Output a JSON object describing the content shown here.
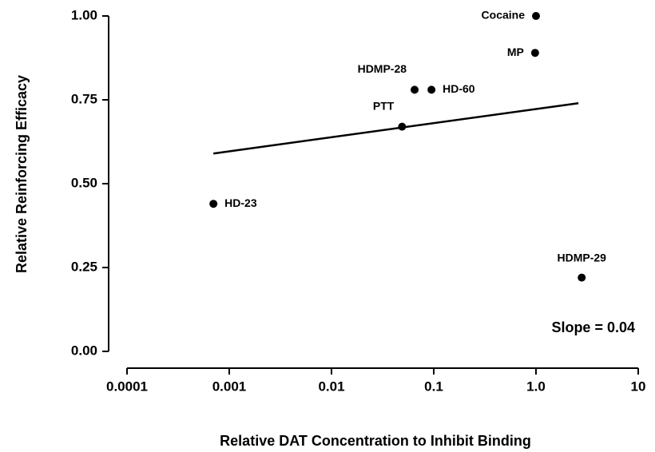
{
  "chart_data": {
    "type": "scatter",
    "xlabel": "Relative DAT Concentration to Inhibit Binding",
    "ylabel": "Relative Reinforcing Efficacy",
    "x_scale": "log",
    "labels": [
      "Cocaine",
      "MP",
      "HDMP-28",
      "HD-60",
      "PTT",
      "HD-23",
      "HDMP-29"
    ],
    "x": [
      1.0,
      0.98,
      0.065,
      0.095,
      0.049,
      0.0007,
      2.8
    ],
    "y": [
      1.0,
      0.89,
      0.78,
      0.78,
      0.67,
      0.44,
      0.22
    ],
    "color": "#000000",
    "fit": {
      "x": [
        0.0007,
        2.6
      ],
      "y": [
        0.59,
        0.74
      ]
    },
    "annotation": "Slope = 0.04",
    "xlim": [
      0.0001,
      10
    ],
    "xticks": [
      0.0001,
      0.001,
      0.01,
      0.1,
      {
        "value": 1,
        "label": "1.0"
      },
      10
    ],
    "ylim": [
      0,
      1
    ],
    "yticks": [
      {
        "value": 0,
        "label": "0.00"
      },
      {
        "value": 0.25,
        "label": "0.25"
      },
      {
        "value": 0.5,
        "label": "0.50"
      },
      {
        "value": 0.75,
        "label": "0.75"
      },
      {
        "value": 1,
        "label": "1.00"
      }
    ]
  }
}
